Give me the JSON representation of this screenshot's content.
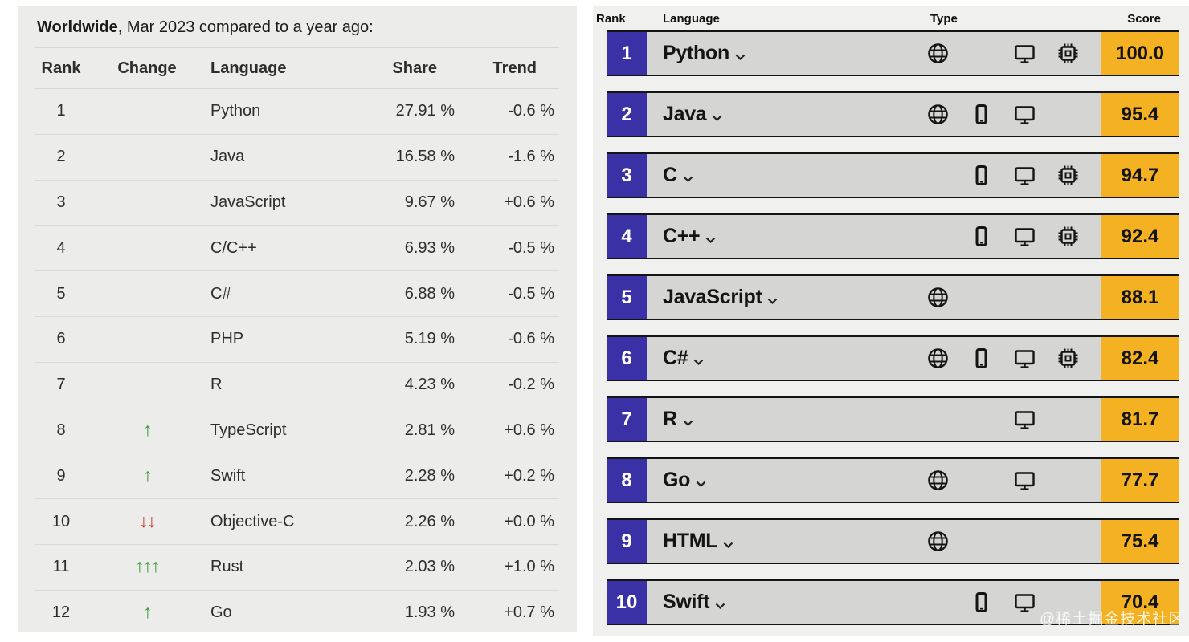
{
  "left_table": {
    "title_bold": "Worldwide",
    "title_rest": ", Mar 2023 compared to a year ago:",
    "columns": [
      "Rank",
      "Change",
      "Language",
      "Share",
      "Trend"
    ],
    "rows": [
      {
        "rank": "1",
        "arrows": "",
        "dir": "",
        "language": "Python",
        "share": "27.91 %",
        "trend": "-0.6 %"
      },
      {
        "rank": "2",
        "arrows": "",
        "dir": "",
        "language": "Java",
        "share": "16.58 %",
        "trend": "-1.6 %"
      },
      {
        "rank": "3",
        "arrows": "",
        "dir": "",
        "language": "JavaScript",
        "share": "9.67 %",
        "trend": "+0.6 %"
      },
      {
        "rank": "4",
        "arrows": "",
        "dir": "",
        "language": "C/C++",
        "share": "6.93 %",
        "trend": "-0.5 %"
      },
      {
        "rank": "5",
        "arrows": "",
        "dir": "",
        "language": "C#",
        "share": "6.88 %",
        "trend": "-0.5 %"
      },
      {
        "rank": "6",
        "arrows": "",
        "dir": "",
        "language": "PHP",
        "share": "5.19 %",
        "trend": "-0.6 %"
      },
      {
        "rank": "7",
        "arrows": "",
        "dir": "",
        "language": "R",
        "share": "4.23 %",
        "trend": "-0.2 %"
      },
      {
        "rank": "8",
        "arrows": "↑",
        "dir": "up",
        "language": "TypeScript",
        "share": "2.81 %",
        "trend": "+0.6 %"
      },
      {
        "rank": "9",
        "arrows": "↑",
        "dir": "up",
        "language": "Swift",
        "share": "2.28 %",
        "trend": "+0.2 %"
      },
      {
        "rank": "10",
        "arrows": "↓↓",
        "dir": "down",
        "language": "Objective-C",
        "share": "2.26 %",
        "trend": "+0.0 %"
      },
      {
        "rank": "11",
        "arrows": "↑↑↑",
        "dir": "up",
        "language": "Rust",
        "share": "2.03 %",
        "trend": "+1.0 %"
      },
      {
        "rank": "12",
        "arrows": "↑",
        "dir": "up",
        "language": "Go",
        "share": "1.93 %",
        "trend": "+0.7 %"
      }
    ],
    "colors": {
      "up_arrow": "#349a35",
      "down_arrow": "#c0342b"
    }
  },
  "right_table": {
    "columns": [
      "Rank",
      "Language",
      "Type",
      "Score"
    ],
    "type_icon_names": {
      "web": "globe-icon",
      "mobile": "smartphone-icon",
      "desktop": "monitor-icon",
      "embedded": "chip-icon"
    },
    "rows": [
      {
        "rank": "1",
        "language": "Python",
        "types": [
          "web",
          "desktop",
          "embedded"
        ],
        "score": "100.0"
      },
      {
        "rank": "2",
        "language": "Java",
        "types": [
          "web",
          "mobile",
          "desktop"
        ],
        "score": "95.4"
      },
      {
        "rank": "3",
        "language": "C",
        "types": [
          "mobile",
          "desktop",
          "embedded"
        ],
        "score": "94.7"
      },
      {
        "rank": "4",
        "language": "C++",
        "types": [
          "mobile",
          "desktop",
          "embedded"
        ],
        "score": "92.4"
      },
      {
        "rank": "5",
        "language": "JavaScript",
        "types": [
          "web"
        ],
        "score": "88.1"
      },
      {
        "rank": "6",
        "language": "C#",
        "types": [
          "web",
          "mobile",
          "desktop",
          "embedded"
        ],
        "score": "82.4"
      },
      {
        "rank": "7",
        "language": "R",
        "types": [
          "desktop"
        ],
        "score": "81.7"
      },
      {
        "rank": "8",
        "language": "Go",
        "types": [
          "web",
          "desktop"
        ],
        "score": "77.7"
      },
      {
        "rank": "9",
        "language": "HTML",
        "types": [
          "web"
        ],
        "score": "75.4"
      },
      {
        "rank": "10",
        "language": "Swift",
        "types": [
          "mobile",
          "desktop"
        ],
        "score": "70.4"
      }
    ],
    "colors": {
      "rank_badge_bg": "#3b31a6",
      "score_bg": "#f4b223"
    }
  },
  "watermark": "@稀土掘金技术社区"
}
